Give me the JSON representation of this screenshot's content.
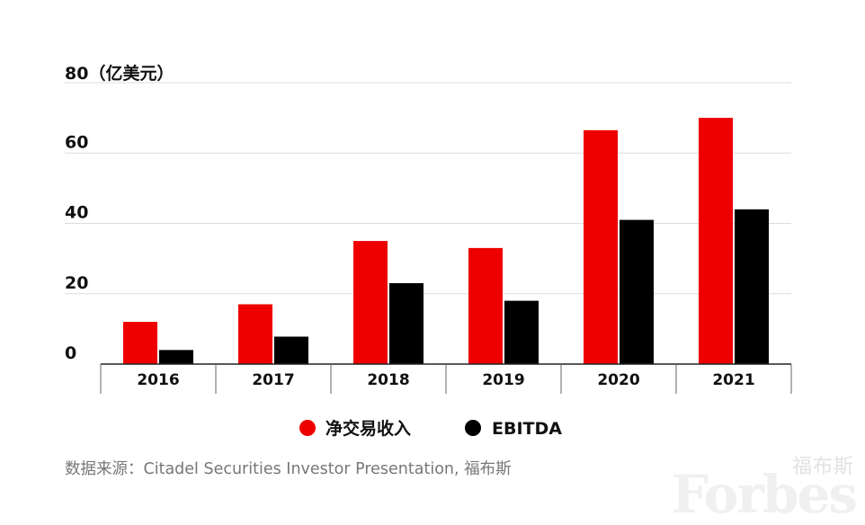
{
  "chart_data": {
    "type": "bar",
    "title": "",
    "ylabel": "80（亿美元）",
    "xlabel": "",
    "ylim": [
      0,
      80
    ],
    "yticks": [
      "0",
      "20",
      "40",
      "60"
    ],
    "categories": [
      "2016",
      "2017",
      "2018",
      "2019",
      "2020",
      "2021"
    ],
    "series": [
      {
        "name": "净交易收入",
        "color": "#ee0000",
        "values": [
          12,
          17,
          35,
          33,
          66.5,
          70
        ]
      },
      {
        "name": "EBITDA",
        "color": "#000000",
        "values": [
          4,
          7.8,
          23,
          18,
          41,
          44
        ]
      }
    ],
    "grid": true,
    "legend_position": "bottom-center"
  },
  "source": "数据来源：Citadel Securities Investor Presentation, 福布斯",
  "watermark": {
    "small": "福布斯",
    "logo": "Forbes"
  }
}
